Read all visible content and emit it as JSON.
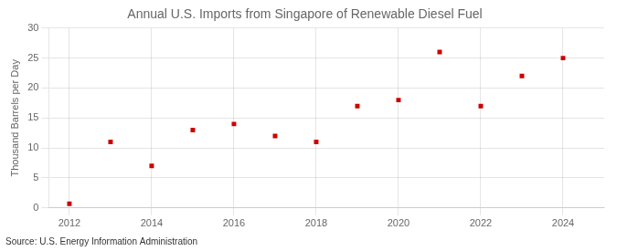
{
  "chart_data": {
    "type": "scatter",
    "title": "Annual U.S. Imports from Singapore of Renewable Diesel Fuel",
    "ylabel": "Thousand Barrels per Day",
    "annotations": [
      "Source: U.S. Energy Information Administration"
    ],
    "x": [
      2012,
      2013,
      2014,
      2015,
      2016,
      2017,
      2018,
      2019,
      2020,
      2021,
      2022,
      2023,
      2024
    ],
    "values": [
      0.7,
      11.0,
      7.0,
      13.0,
      14.0,
      12.0,
      11.0,
      17.0,
      18.0,
      26.0,
      17.0,
      22.0,
      25.0
    ],
    "color": "#cc0000",
    "marker": "square",
    "xlim": [
      2011.5,
      2025.0
    ],
    "ylim": [
      0,
      30
    ],
    "xticks": [
      2012,
      2014,
      2016,
      2018,
      2020,
      2022,
      2024
    ],
    "yticks": [
      0,
      5,
      10,
      15,
      20,
      25,
      30
    ],
    "grid": true
  }
}
